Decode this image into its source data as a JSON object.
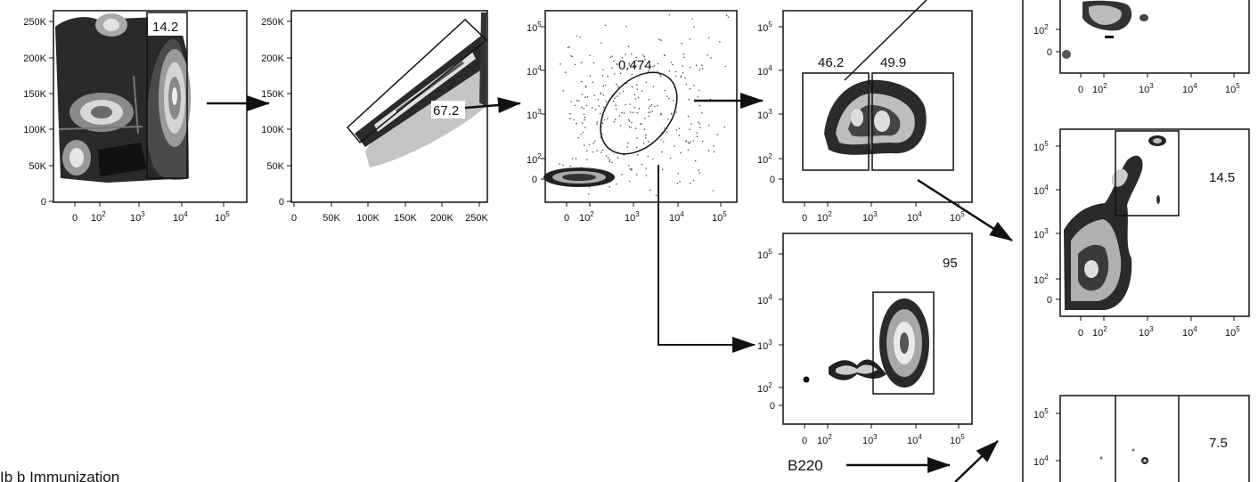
{
  "linear_ticks_y": [
    "250K",
    "200K",
    "150K",
    "100K",
    "50K",
    "0"
  ],
  "linear_ticks_x": [
    "0",
    "50K",
    "100K",
    "150K",
    "200K",
    "250K"
  ],
  "log_ticks": {
    "zero": "0",
    "base": "10",
    "exps": [
      "2",
      "3",
      "4",
      "5"
    ]
  },
  "panels": {
    "p1": {
      "gate_pct": "14.2"
    },
    "p2": {
      "gate_pct": "67.2"
    },
    "p3": {
      "gate_pct": "0.474"
    },
    "p4": {
      "gate_left_pct": "46.2",
      "gate_right_pct": "49.9"
    },
    "p5": {
      "gate_pct": "95",
      "xlabel": "B220"
    },
    "r2": {
      "gate_pct": "14.5"
    },
    "r3": {
      "gate_pct": "7.5"
    }
  },
  "caption": "Ib b Immunization",
  "colors": {
    "ink": "#111111",
    "contour_dark": "#1a1a1a",
    "contour_mid": "#8c8c8c",
    "contour_light": "#d9d9d9"
  }
}
